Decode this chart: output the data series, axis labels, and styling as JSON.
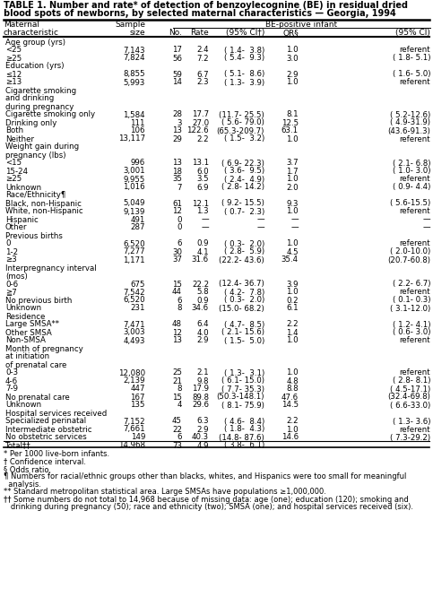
{
  "title_line1": "TABLE 1. Number and rate* of detection of benzoylecognine (BE) in residual dried",
  "title_line2": "blood spots of newborns, by selected maternal characteristics — Georgia, 1994",
  "col_header_row1": [
    "Maternal",
    "Sample",
    "",
    "",
    "BE-positive infant",
    "",
    ""
  ],
  "col_header_row2": [
    "characteristic",
    "size",
    "No.",
    "Rate",
    "(95% CI†)",
    "OR§",
    "(95% CI)"
  ],
  "rows": [
    {
      "label": "Age group (yrs)",
      "indent": 0,
      "is_header": true,
      "data": [
        "",
        "",
        "",
        "",
        "",
        ""
      ]
    },
    {
      "label": "<25",
      "indent": 1,
      "is_header": false,
      "data": [
        "7,143",
        "17",
        "2.4",
        "( 1.4-  3.8)",
        "1.0",
        "referent"
      ]
    },
    {
      "label": "≥25",
      "indent": 1,
      "is_header": false,
      "data": [
        "7,824",
        "56",
        "7.2",
        "( 5.4-  9.3)",
        "3.0",
        "( 1.8- 5.1)"
      ]
    },
    {
      "label": "Education (yrs)",
      "indent": 0,
      "is_header": true,
      "data": [
        "",
        "",
        "",
        "",
        "",
        ""
      ]
    },
    {
      "label": "≤12",
      "indent": 1,
      "is_header": false,
      "data": [
        "8,855",
        "59",
        "6.7",
        "( 5.1-  8.6)",
        "2.9",
        "( 1.6- 5.0)"
      ]
    },
    {
      "label": "≥13",
      "indent": 1,
      "is_header": false,
      "data": [
        "5,993",
        "14",
        "2.3",
        "( 1.3-  3.9)",
        "1.0",
        "referent"
      ]
    },
    {
      "label": "Cigarette smoking",
      "indent": 0,
      "is_header": true,
      "data": [
        "",
        "",
        "",
        "",
        "",
        ""
      ]
    },
    {
      "label": "  and drinking",
      "indent": 0,
      "is_header": true,
      "data": [
        "",
        "",
        "",
        "",
        "",
        ""
      ]
    },
    {
      "label": "  during pregnancy",
      "indent": 0,
      "is_header": true,
      "data": [
        "",
        "",
        "",
        "",
        "",
        ""
      ]
    },
    {
      "label": "  Cigarette smoking only",
      "indent": 1,
      "is_header": false,
      "data": [
        "1,584",
        "28",
        "17.7",
        "(11.7- 25.5)",
        "8.1",
        "( 5.2-12.6)"
      ]
    },
    {
      "label": "  Drinking only",
      "indent": 1,
      "is_header": false,
      "data": [
        "111",
        "3",
        "27.0",
        "( 5.6- 79.0)",
        "12.5",
        "( 4.9-31.9)"
      ]
    },
    {
      "label": "  Both",
      "indent": 1,
      "is_header": false,
      "data": [
        "106",
        "13",
        "122.6",
        "(65.3-209.7)",
        "63.1",
        "(43.6-91.3)"
      ]
    },
    {
      "label": "  Neither",
      "indent": 1,
      "is_header": false,
      "data": [
        "13,117",
        "29",
        "2.2",
        "( 1.5-  3.2)",
        "1.0",
        "referent"
      ]
    },
    {
      "label": "Weight gain during",
      "indent": 0,
      "is_header": true,
      "data": [
        "",
        "",
        "",
        "",
        "",
        ""
      ]
    },
    {
      "label": "  pregnancy (lbs)",
      "indent": 0,
      "is_header": true,
      "data": [
        "",
        "",
        "",
        "",
        "",
        ""
      ]
    },
    {
      "label": "  <15",
      "indent": 1,
      "is_header": false,
      "data": [
        "996",
        "13",
        "13.1",
        "( 6.9- 22.3)",
        "3.7",
        "( 2.1- 6.8)"
      ]
    },
    {
      "label": "  15-24",
      "indent": 1,
      "is_header": false,
      "data": [
        "3,001",
        "18",
        "6.0",
        "( 3.6-  9.5)",
        "1.7",
        "( 1.0- 3.0)"
      ]
    },
    {
      "label": "  ≥25",
      "indent": 1,
      "is_header": false,
      "data": [
        "9,955",
        "35",
        "3.5",
        "( 2.4-  4.9)",
        "1.0",
        "referent"
      ]
    },
    {
      "label": "  Unknown",
      "indent": 1,
      "is_header": false,
      "data": [
        "1,016",
        "7",
        "6.9",
        "( 2.8- 14.2)",
        "2.0",
        "( 0.9- 4.4)"
      ]
    },
    {
      "label": "Race/Ethnicity¶",
      "indent": 0,
      "is_header": true,
      "data": [
        "",
        "",
        "",
        "",
        "",
        ""
      ]
    },
    {
      "label": "  Black, non-Hispanic",
      "indent": 1,
      "is_header": false,
      "data": [
        "5,049",
        "61",
        "12.1",
        "( 9.2- 15.5)",
        "9.3",
        "( 5.6-15.5)"
      ]
    },
    {
      "label": "  White, non-Hispanic",
      "indent": 1,
      "is_header": false,
      "data": [
        "9,139",
        "12",
        "1.3",
        "( 0.7-  2.3)",
        "1.0",
        "referent"
      ]
    },
    {
      "label": "  Hispanic",
      "indent": 1,
      "is_header": false,
      "data": [
        "491",
        "0",
        "—",
        "—",
        "—",
        "—"
      ]
    },
    {
      "label": "  Other",
      "indent": 1,
      "is_header": false,
      "data": [
        "287",
        "0",
        "—",
        "—",
        "—",
        "—"
      ]
    },
    {
      "label": "Previous births",
      "indent": 0,
      "is_header": true,
      "data": [
        "",
        "",
        "",
        "",
        "",
        ""
      ]
    },
    {
      "label": "  0",
      "indent": 1,
      "is_header": false,
      "data": [
        "6,520",
        "6",
        "0.9",
        "( 0.3-  2.0)",
        "1.0",
        "referent"
      ]
    },
    {
      "label": "  1-2",
      "indent": 1,
      "is_header": false,
      "data": [
        "7,277",
        "30",
        "4.1",
        "( 2.8-  5.9)",
        "4.5",
        "( 2.0-10.0)"
      ]
    },
    {
      "label": "  ≥3",
      "indent": 1,
      "is_header": false,
      "data": [
        "1,171",
        "37",
        "31.6",
        "(22.2- 43.6)",
        "35.4",
        "(20.7-60.8)"
      ]
    },
    {
      "label": "Interpregnancy interval",
      "indent": 0,
      "is_header": true,
      "data": [
        "",
        "",
        "",
        "",
        "",
        ""
      ]
    },
    {
      "label": "  (mos)",
      "indent": 0,
      "is_header": true,
      "data": [
        "",
        "",
        "",
        "",
        "",
        ""
      ]
    },
    {
      "label": "  0-6",
      "indent": 1,
      "is_header": false,
      "data": [
        "675",
        "15",
        "22.2",
        "(12.4- 36.7)",
        "3.9",
        "( 2.2- 6.7)"
      ]
    },
    {
      "label": "  ≧7",
      "indent": 1,
      "is_header": false,
      "data": [
        "7,542",
        "44",
        "5.8",
        "( 4.2-  7.8)",
        "1.0",
        "referent"
      ]
    },
    {
      "label": "  No previous birth",
      "indent": 1,
      "is_header": false,
      "data": [
        "6,520",
        "6",
        "0.9",
        "( 0.3-  2.0)",
        "0.2",
        "( 0.1- 0.3)"
      ]
    },
    {
      "label": "  Unknown",
      "indent": 1,
      "is_header": false,
      "data": [
        "231",
        "8",
        "34.6",
        "(15.0- 68.2)",
        "6.1",
        "( 3.1-12.0)"
      ]
    },
    {
      "label": "Residence",
      "indent": 0,
      "is_header": true,
      "data": [
        "",
        "",
        "",
        "",
        "",
        ""
      ]
    },
    {
      "label": "  Large SMSA**",
      "indent": 1,
      "is_header": false,
      "data": [
        "7,471",
        "48",
        "6.4",
        "( 4.7-  8.5)",
        "2.2",
        "( 1.2- 4.1)"
      ]
    },
    {
      "label": "  Other SMSA",
      "indent": 1,
      "is_header": false,
      "data": [
        "3,003",
        "12",
        "4.0",
        "( 2.1- 15.6)",
        "1.4",
        "( 0.6- 3.0)"
      ]
    },
    {
      "label": "  Non-SMSA",
      "indent": 1,
      "is_header": false,
      "data": [
        "4,493",
        "13",
        "2.9",
        "( 1.5-  5.0)",
        "1.0",
        "referent"
      ]
    },
    {
      "label": "Month of pregnancy",
      "indent": 0,
      "is_header": true,
      "data": [
        "",
        "",
        "",
        "",
        "",
        ""
      ]
    },
    {
      "label": "  at initiation",
      "indent": 0,
      "is_header": true,
      "data": [
        "",
        "",
        "",
        "",
        "",
        ""
      ]
    },
    {
      "label": "  of prenatal care",
      "indent": 0,
      "is_header": true,
      "data": [
        "",
        "",
        "",
        "",
        "",
        ""
      ]
    },
    {
      "label": "  0-3",
      "indent": 1,
      "is_header": false,
      "data": [
        "12,080",
        "25",
        "2.1",
        "( 1.3-  3.1)",
        "1.0",
        "referent"
      ]
    },
    {
      "label": "  4-6",
      "indent": 1,
      "is_header": false,
      "data": [
        "2,139",
        "21",
        "9.8",
        "( 6.1- 15.0)",
        "4.8",
        "( 2.8- 8.1)"
      ]
    },
    {
      "label": "  7-9",
      "indent": 1,
      "is_header": false,
      "data": [
        "447",
        "8",
        "17.9",
        "( 7.7- 35.3)",
        "8.8",
        "( 4.5-17.1)"
      ]
    },
    {
      "label": "  No prenatal care",
      "indent": 1,
      "is_header": false,
      "data": [
        "167",
        "15",
        "89.8",
        "(50.3-148.1)",
        "47.6",
        "(32.4-69.8)"
      ]
    },
    {
      "label": "  Unknown",
      "indent": 1,
      "is_header": false,
      "data": [
        "135",
        "4",
        "29.6",
        "( 8.1- 75.9)",
        "14.5",
        "( 6.6-33.0)"
      ]
    },
    {
      "label": "Hospital services received",
      "indent": 0,
      "is_header": true,
      "data": [
        "",
        "",
        "",
        "",
        "",
        ""
      ]
    },
    {
      "label": "  Specialized perinatal",
      "indent": 1,
      "is_header": false,
      "data": [
        "7,152",
        "45",
        "6.3",
        "( 4.6-  8.4)",
        "2.2",
        "( 1.3- 3.6)"
      ]
    },
    {
      "label": "  Intermediate obstetric",
      "indent": 1,
      "is_header": false,
      "data": [
        "7,661",
        "22",
        "2.9",
        "( 1.8-  4.3)",
        "1.0",
        "referent"
      ]
    },
    {
      "label": "  No obstetric services",
      "indent": 1,
      "is_header": false,
      "data": [
        "149",
        "6",
        "40.3",
        "(14.8- 87.6)",
        "14.6",
        "( 7.3-29.2)"
      ]
    },
    {
      "label": "Total††",
      "indent": 0,
      "is_header": false,
      "is_total": true,
      "data": [
        "14,968",
        "73",
        "4.9",
        "( 3.8-  6.1)",
        "",
        ""
      ]
    }
  ],
  "footnotes": [
    "* Per 1000 live-born infants.",
    "† Confidence interval.",
    "§ Odds ratio.",
    "¶ Numbers for racial/ethnic groups other than blacks, whites, and Hispanics were too small for meaningful",
    "  analysis.",
    "** Standard metropolitan statistical area. Large SMSAs have populations ≥1,000,000.",
    "†† Some numbers do not total to 14,968 because of missing data: age (one); education (120); smoking and",
    "   drinking during pregnancy (50); race and ethnicity (two); SMSA (one); and hospital services received (six)."
  ]
}
